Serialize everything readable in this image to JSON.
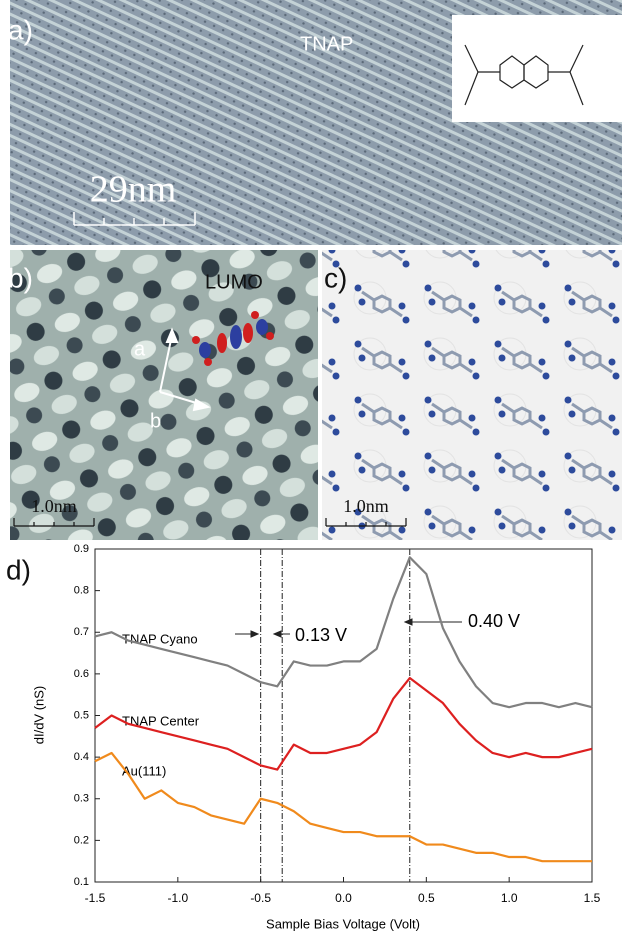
{
  "panels": {
    "a": {
      "label": "a)",
      "title": "TNAP",
      "scale_bar": "29nm"
    },
    "b": {
      "label": "b)",
      "orbital": "LUMO",
      "axis_a": "a",
      "axis_b": "b",
      "scale_bar": "1.0nm"
    },
    "c": {
      "label": "c)",
      "scale_bar": "1.0nm"
    },
    "d": {
      "label": "d)"
    }
  },
  "chart_data": {
    "type": "line",
    "xlabel": "Sample Bias Voltage (Volt)",
    "ylabel": "dI/dV (nS)",
    "x": [
      -1.5,
      -1.4,
      -1.3,
      -1.2,
      -1.1,
      -1.0,
      -0.9,
      -0.8,
      -0.7,
      -0.6,
      -0.5,
      -0.4,
      -0.3,
      -0.2,
      -0.1,
      0.0,
      0.1,
      0.2,
      0.3,
      0.4,
      0.5,
      0.6,
      0.7,
      0.8,
      0.9,
      1.0,
      1.1,
      1.2,
      1.3,
      1.4,
      1.5
    ],
    "series": [
      {
        "name": "TNAP Cyano",
        "color": "#808080",
        "values": [
          0.69,
          0.7,
          0.68,
          0.67,
          0.66,
          0.65,
          0.64,
          0.63,
          0.62,
          0.6,
          0.58,
          0.57,
          0.63,
          0.62,
          0.62,
          0.63,
          0.63,
          0.66,
          0.78,
          0.88,
          0.84,
          0.71,
          0.63,
          0.57,
          0.53,
          0.52,
          0.53,
          0.53,
          0.52,
          0.53,
          0.52
        ]
      },
      {
        "name": "TNAP Center",
        "color": "#dd2020",
        "values": [
          0.47,
          0.5,
          0.48,
          0.47,
          0.46,
          0.45,
          0.44,
          0.43,
          0.42,
          0.4,
          0.38,
          0.37,
          0.43,
          0.41,
          0.41,
          0.42,
          0.43,
          0.46,
          0.54,
          0.59,
          0.56,
          0.53,
          0.48,
          0.44,
          0.41,
          0.4,
          0.41,
          0.4,
          0.4,
          0.41,
          0.42
        ]
      },
      {
        "name": "Au(111)",
        "color": "#f08a1c",
        "values": [
          0.39,
          0.41,
          0.36,
          0.3,
          0.32,
          0.29,
          0.28,
          0.26,
          0.25,
          0.24,
          0.3,
          0.29,
          0.27,
          0.24,
          0.23,
          0.22,
          0.22,
          0.21,
          0.21,
          0.21,
          0.19,
          0.19,
          0.18,
          0.17,
          0.17,
          0.16,
          0.16,
          0.15,
          0.15,
          0.15,
          0.15
        ]
      }
    ],
    "vlines": [
      -0.5,
      -0.37,
      0.4
    ],
    "annotations": [
      "0.13 V",
      "0.40 V"
    ],
    "xlim": [
      -1.5,
      1.5
    ],
    "xticks": [
      -1.5,
      {
        "value": -1,
        "label": "-1.0"
      },
      -0.5,
      {
        "value": 0,
        "label": "0.0"
      },
      0.5,
      {
        "value": 1,
        "label": "1.0"
      },
      1.5
    ],
    "ylim": [
      0.1,
      0.9
    ],
    "yticks": [
      0.1,
      0.2,
      0.3,
      0.4,
      0.5,
      0.6,
      0.7,
      0.8,
      0.9
    ]
  }
}
